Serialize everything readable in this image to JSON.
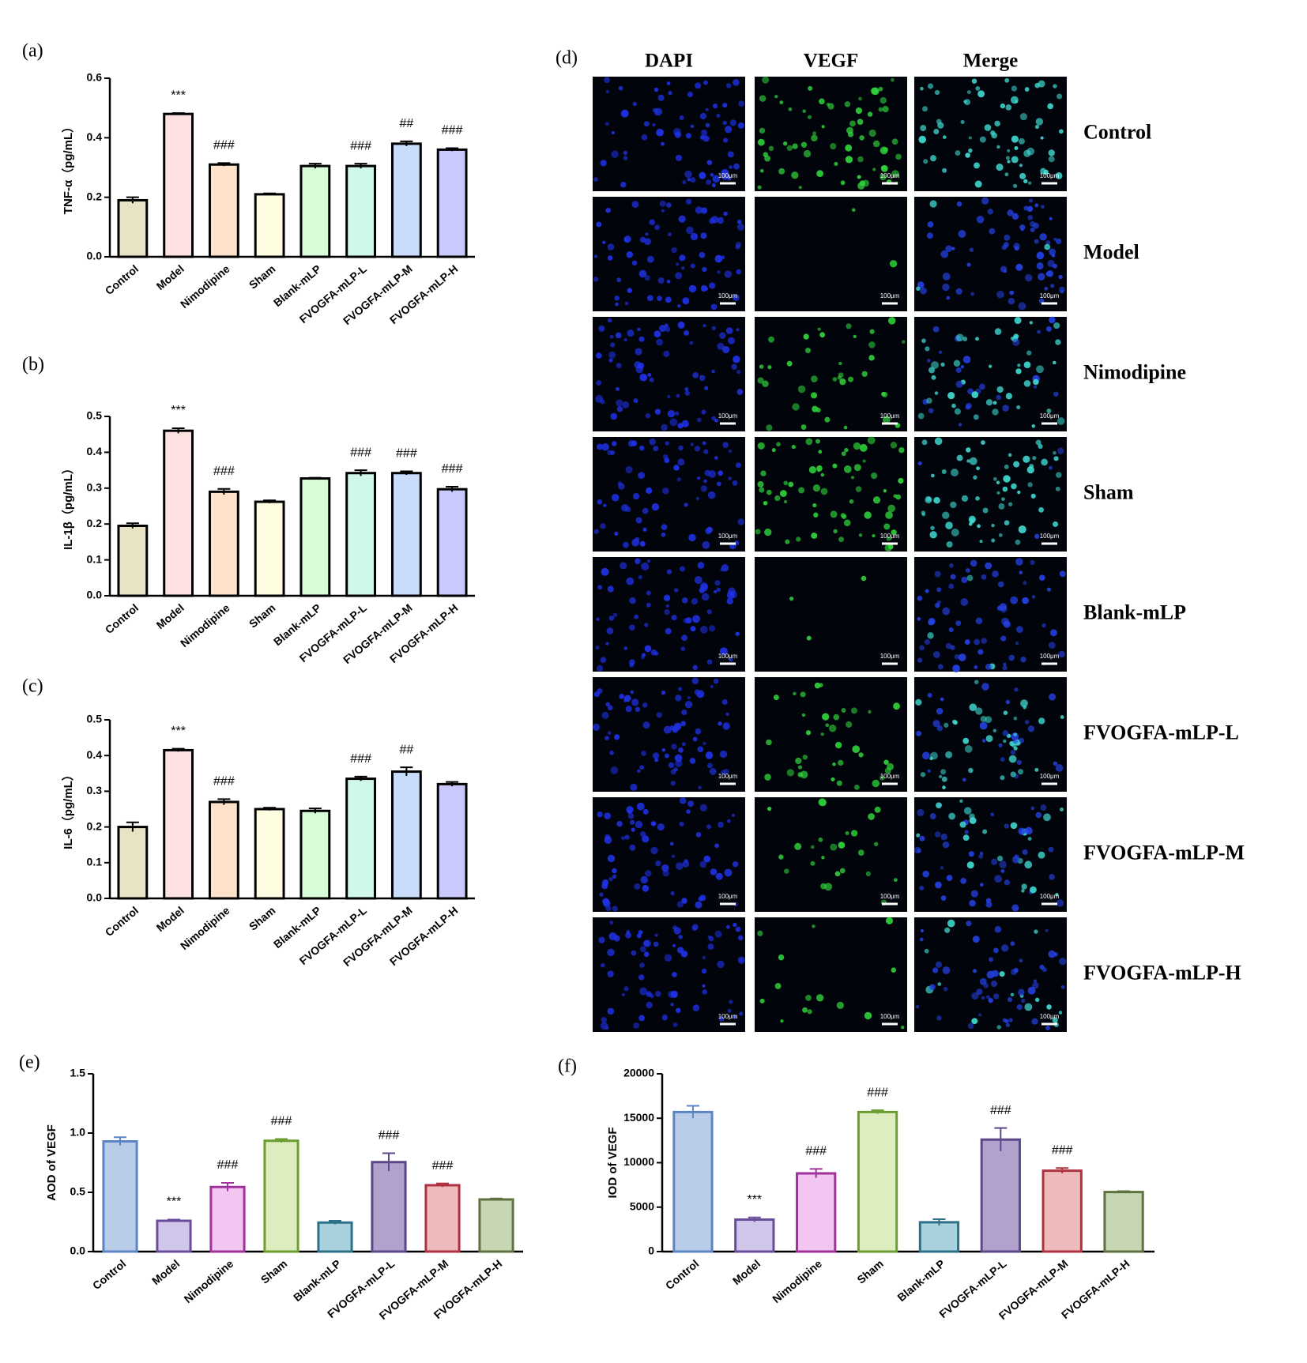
{
  "chart_data": [
    {
      "type": "bar",
      "panel_label": "(a)",
      "ylabel": "TNF-α（pg/mL）",
      "categories": [
        "Control",
        "Model",
        "Nimodipine",
        "Sham",
        "Blank-mLP",
        "FVOGFA-mLP-L",
        "FVOGFA-mLP-M",
        "FVOGFA-mLP-H"
      ],
      "values": [
        0.19,
        0.48,
        0.31,
        0.21,
        0.305,
        0.305,
        0.38,
        0.36
      ],
      "errors": [
        0.01,
        0.003,
        0.005,
        0.003,
        0.008,
        0.008,
        0.008,
        0.005
      ],
      "annotations": [
        null,
        "***",
        "###",
        null,
        null,
        "###",
        "##",
        "###"
      ],
      "colors": [
        "#e9e3c6",
        "#fde0e0",
        "#fde1c8",
        "#fefde2",
        "#d7fcd7",
        "#cff7ea",
        "#cadcfc",
        "#cac9fc"
      ],
      "edge_colors": [
        "#000000",
        "#000000",
        "#000000",
        "#000000",
        "#000000",
        "#000000",
        "#000000",
        "#000000"
      ],
      "ylim": [
        0,
        0.6
      ],
      "yticks": [
        {
          "value": 0,
          "label": "0.0"
        },
        0.2,
        0.4,
        0.6
      ]
    },
    {
      "type": "bar",
      "panel_label": "(b)",
      "ylabel": "IL-1β（pg/mL）",
      "categories": [
        "Control",
        "Model",
        "Nimodipine",
        "Sham",
        "Blank-mLP",
        "FVOGFA-mLP-L",
        "FVOGFA-mLP-M",
        "FVOGFA-mLP-H"
      ],
      "values": [
        0.195,
        0.46,
        0.29,
        0.262,
        0.327,
        0.342,
        0.342,
        0.297
      ],
      "errors": [
        0.007,
        0.007,
        0.008,
        0.004,
        0.002,
        0.008,
        0.005,
        0.007
      ],
      "annotations": [
        null,
        "***",
        "###",
        null,
        null,
        "###",
        "###",
        "###"
      ],
      "colors": [
        "#e9e3c6",
        "#fde0e0",
        "#fde1c8",
        "#fefde2",
        "#d7fcd7",
        "#cff7ea",
        "#cadcfc",
        "#cac9fc"
      ],
      "edge_colors": [
        "#000000",
        "#000000",
        "#000000",
        "#000000",
        "#000000",
        "#000000",
        "#000000",
        "#000000"
      ],
      "ylim": [
        0,
        0.5
      ],
      "yticks": [
        {
          "value": 0,
          "label": "0.0"
        },
        0.1,
        0.2,
        0.3,
        0.4,
        0.5
      ]
    },
    {
      "type": "bar",
      "panel_label": "(c)",
      "ylabel": "IL-6（pg/mL）",
      "categories": [
        "Control",
        "Model",
        "Nimodipine",
        "Sham",
        "Blank-mLP",
        "FVOGFA-mLP-L",
        "FVOGFA-mLP-M",
        "FVOGFA-mLP-H"
      ],
      "values": [
        0.2,
        0.415,
        0.27,
        0.25,
        0.245,
        0.335,
        0.355,
        0.32
      ],
      "errors": [
        0.013,
        0.004,
        0.008,
        0.004,
        0.007,
        0.006,
        0.012,
        0.006
      ],
      "annotations": [
        null,
        "***",
        "###",
        null,
        null,
        "###",
        "##",
        null
      ],
      "colors": [
        "#e9e3c6",
        "#fde0e0",
        "#fde1c8",
        "#fefde2",
        "#d7fcd7",
        "#cff7ea",
        "#cadcfc",
        "#cac9fc"
      ],
      "edge_colors": [
        "#000000",
        "#000000",
        "#000000",
        "#000000",
        "#000000",
        "#000000",
        "#000000",
        "#000000"
      ],
      "ylim": [
        0,
        0.5
      ],
      "yticks": [
        {
          "value": 0,
          "label": "0.0"
        },
        0.1,
        0.2,
        0.3,
        0.4,
        0.5
      ]
    },
    {
      "type": "bar",
      "panel_label": "(e)",
      "ylabel": "AOD of VEGF",
      "categories": [
        "Control",
        "Model",
        "Nimodipine",
        "Sham",
        "Blank-mLP",
        "FVOGFA-mLP-L",
        "FVOGFA-mLP-M",
        "FVOGFA-mLP-H"
      ],
      "values": [
        0.93,
        0.26,
        0.545,
        0.935,
        0.245,
        0.755,
        0.56,
        0.44
      ],
      "errors": [
        0.035,
        0.01,
        0.035,
        0.015,
        0.015,
        0.075,
        0.015,
        0.008
      ],
      "annotations": [
        null,
        "***",
        "###",
        "###",
        null,
        "###",
        "###",
        null
      ],
      "colors": [
        "#b9cde9",
        "#d0c6e9",
        "#f2c6f1",
        "#ddedbd",
        "#a9d1dd",
        "#b1a2cd",
        "#efbabb",
        "#c6d5b2"
      ],
      "edge_colors": [
        "#5d85c5",
        "#6a4c9d",
        "#a0319c",
        "#6b9d31",
        "#2d7189",
        "#5c4889",
        "#b03141",
        "#5d7141"
      ],
      "ylim": [
        0,
        1.5
      ],
      "yticks": [
        {
          "value": 0,
          "label": "0.0"
        },
        0.5,
        {
          "value": 1,
          "label": "1.0"
        },
        1.5
      ]
    },
    {
      "type": "bar",
      "panel_label": "(f)",
      "ylabel": "IOD of VEGF",
      "categories": [
        "Control",
        "Model",
        "Nimodipine",
        "Sham",
        "Blank-mLP",
        "FVOGFA-mLP-L",
        "FVOGFA-mLP-M",
        "FVOGFA-mLP-H"
      ],
      "values": [
        15700,
        3600,
        8800,
        15700,
        3300,
        12600,
        9100,
        6700
      ],
      "errors": [
        700,
        250,
        500,
        200,
        350,
        1300,
        300,
        100
      ],
      "annotations": [
        null,
        "***",
        "###",
        "###",
        null,
        "###",
        "###",
        null
      ],
      "colors": [
        "#b9cde9",
        "#d0c6e9",
        "#f2c6f1",
        "#ddedbd",
        "#a9d1dd",
        "#b1a2cd",
        "#efbabb",
        "#c6d5b2"
      ],
      "edge_colors": [
        "#5d85c5",
        "#6a4c9d",
        "#a0319c",
        "#6b9d31",
        "#2d7189",
        "#5c4889",
        "#b03141",
        "#5d7141"
      ],
      "ylim": [
        0,
        20000
      ],
      "yticks": [
        0,
        5000,
        10000,
        15000,
        20000
      ]
    }
  ],
  "panel_d": {
    "label": "(d)",
    "columns": [
      "DAPI",
      "VEGF",
      "Merge"
    ],
    "rows": [
      "Control",
      "Model",
      "Nimodipine",
      "Sham",
      "Blank-mLP",
      "FVOGFA-mLP-L",
      "FVOGFA-mLP-M",
      "FVOGFA-mLP-H"
    ],
    "scale_bar": "100μm"
  }
}
